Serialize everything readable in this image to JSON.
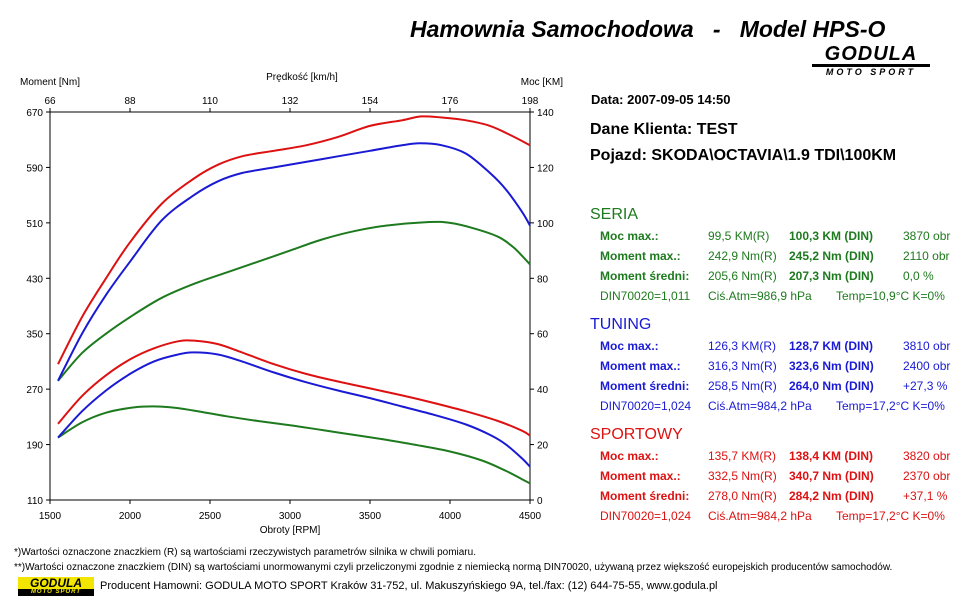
{
  "header": {
    "title": "Hamownia Samochodowa   -   Model HPS-O",
    "logo_main": "GODULA",
    "logo_sub": "MOTO SPORT"
  },
  "info": {
    "date": "Data: 2007-09-05  14:50",
    "client": "Dane Klienta: TEST",
    "vehicle": "Pojazd: SKODA\\OCTAVIA\\1.9 TDI\\100KM"
  },
  "sections": [
    {
      "name": "SERIA",
      "color": "#1e7a1e",
      "rows": [
        {
          "label": "Moc max.:",
          "real": "99,5 KM(R)",
          "din": "100,3 KM (DIN)",
          "extra": "3870 obr"
        },
        {
          "label": "Moment max.:",
          "real": "242,9 Nm(R)",
          "din": "245,2 Nm (DIN)",
          "extra": "2110 obr"
        },
        {
          "label": "Moment średni:",
          "real": "205,6 Nm(R)",
          "din": "207,3 Nm (DIN)",
          "extra": "0,0 %"
        }
      ],
      "din_line": {
        "din": "DIN70020=1,011",
        "atm": "Ciś.Atm=986,9 hPa",
        "temp": "Temp=10,9°C  K=0%"
      }
    },
    {
      "name": "TUNING",
      "color": "#1a1ad4",
      "rows": [
        {
          "label": "Moc max.:",
          "real": "126,3 KM(R)",
          "din": "128,7 KM (DIN)",
          "extra": "3810 obr"
        },
        {
          "label": "Moment max.:",
          "real": "316,3 Nm(R)",
          "din": "323,6 Nm (DIN)",
          "extra": "2400 obr"
        },
        {
          "label": "Moment średni:",
          "real": "258,5 Nm(R)",
          "din": "264,0 Nm (DIN)",
          "extra": "+27,3 %"
        }
      ],
      "din_line": {
        "din": "DIN70020=1,024",
        "atm": "Ciś.Atm=984,2 hPa",
        "temp": "Temp=17,2°C  K=0%"
      }
    },
    {
      "name": "SPORTOWY",
      "color": "#dd1111",
      "rows": [
        {
          "label": "Moc max.:",
          "real": "135,7 KM(R)",
          "din": "138,4 KM (DIN)",
          "extra": "3820 obr"
        },
        {
          "label": "Moment max.:",
          "real": "332,5 Nm(R)",
          "din": "340,7 Nm (DIN)",
          "extra": "2370 obr"
        },
        {
          "label": "Moment średni:",
          "real": "278,0 Nm(R)",
          "din": "284,2 Nm (DIN)",
          "extra": "+37,1 %"
        }
      ],
      "din_line": {
        "din": "DIN70020=1,024",
        "atm": "Ciś.Atm=984,2 hPa",
        "temp": "Temp=17,2°C  K=0%"
      }
    }
  ],
  "notes": [
    "*)Wartości oznaczone znaczkiem (R) są wartościami rzeczywistych parametrów silnika w chwili pomiaru.",
    "**)Wartości oznaczone znaczkiem (DIN) są wartościami unormowanymi czyli przeliczonymi zgodnie z niemiecką normą DIN70020, używaną przez większość europejskich producentów samochodów."
  ],
  "footer": {
    "logo_main": "GODULA",
    "logo_sub": "MOTO SPORT",
    "text": "Producent Hamowni: GODULA MOTO SPORT Kraków 31-752, ul. Makuszyńskiego 9A, tel./fax: (12) 644-75-55, www.godula.pl"
  },
  "chart_data": {
    "type": "line",
    "xlabel": "Obroty [RPM]",
    "ylabel_left": "Moment [Nm]",
    "ylabel_right": "Moc [KM]",
    "top_axis_label": "Prędkość [km/h]",
    "xlim": [
      1500,
      4500
    ],
    "ylim_left": [
      110,
      670
    ],
    "ylim_right": [
      0,
      140
    ],
    "x_ticks": [
      1500,
      2000,
      2500,
      3000,
      3500,
      4000,
      4500
    ],
    "y_left_ticks": [
      110,
      190,
      270,
      350,
      430,
      510,
      590,
      670
    ],
    "y_right_ticks": [
      0,
      20,
      40,
      60,
      80,
      100,
      120,
      140
    ],
    "top_ticks": [
      66,
      88,
      110,
      132,
      154,
      176,
      198
    ],
    "grid": false,
    "series": [
      {
        "name": "SERIA",
        "quantity": "torque",
        "axis": "left",
        "color": "#1e7a1e",
        "x": [
          1550,
          1700,
          1850,
          2000,
          2110,
          2250,
          2400,
          2600,
          2800,
          3000,
          3200,
          3400,
          3600,
          3800,
          4000,
          4200,
          4350,
          4450,
          4500
        ],
        "y": [
          200,
          222,
          236,
          243,
          245,
          244,
          239,
          231,
          224,
          218,
          211,
          204,
          197,
          189,
          180,
          167,
          152,
          140,
          134
        ]
      },
      {
        "name": "TUNING",
        "quantity": "torque",
        "axis": "left",
        "color": "#1a1ad4",
        "x": [
          1550,
          1700,
          1850,
          2000,
          2150,
          2300,
          2400,
          2550,
          2700,
          2900,
          3100,
          3300,
          3500,
          3700,
          3900,
          4100,
          4250,
          4350,
          4450,
          4500
        ],
        "y": [
          200,
          238,
          268,
          292,
          310,
          320,
          323,
          320,
          310,
          294,
          280,
          268,
          257,
          245,
          233,
          219,
          204,
          190,
          170,
          158
        ]
      },
      {
        "name": "SPORTOWY",
        "quantity": "torque",
        "axis": "left",
        "color": "#dd1111",
        "x": [
          1550,
          1700,
          1850,
          2000,
          2150,
          2300,
          2400,
          2550,
          2700,
          2900,
          3100,
          3300,
          3500,
          3700,
          3900,
          4100,
          4300,
          4450,
          4500
        ],
        "y": [
          220,
          260,
          290,
          313,
          329,
          339,
          340,
          335,
          323,
          306,
          292,
          281,
          271,
          261,
          250,
          238,
          224,
          210,
          203
        ]
      },
      {
        "name": "SERIA",
        "quantity": "power",
        "axis": "right",
        "color": "#1e7a1e",
        "x": [
          1550,
          1700,
          1850,
          2000,
          2200,
          2400,
          2600,
          2800,
          3000,
          3200,
          3400,
          3600,
          3870,
          4000,
          4150,
          4300,
          4400,
          4500
        ],
        "y": [
          43,
          53,
          60,
          66,
          73,
          78,
          82,
          86,
          90,
          94,
          97,
          99,
          100.3,
          100,
          98,
          95,
          91,
          85
        ]
      },
      {
        "name": "TUNING",
        "quantity": "power",
        "axis": "right",
        "color": "#1a1ad4",
        "x": [
          1550,
          1700,
          1850,
          2000,
          2200,
          2400,
          2550,
          2700,
          2900,
          3100,
          3300,
          3500,
          3700,
          3810,
          3950,
          4100,
          4250,
          4350,
          4450,
          4500
        ],
        "y": [
          43,
          60,
          74,
          86,
          101,
          110,
          115,
          118,
          120,
          122,
          124,
          126,
          128,
          128.7,
          128,
          125,
          118,
          112,
          104,
          99
        ]
      },
      {
        "name": "SPORTOWY",
        "quantity": "power",
        "axis": "right",
        "color": "#dd1111",
        "x": [
          1550,
          1700,
          1850,
          2000,
          2200,
          2400,
          2550,
          2700,
          2900,
          3100,
          3300,
          3500,
          3700,
          3820,
          3950,
          4100,
          4250,
          4400,
          4500
        ],
        "y": [
          49,
          66,
          80,
          93,
          107,
          116,
          121,
          124,
          126,
          128,
          131,
          135,
          137,
          138.4,
          138,
          137,
          135,
          131,
          128
        ]
      }
    ]
  }
}
